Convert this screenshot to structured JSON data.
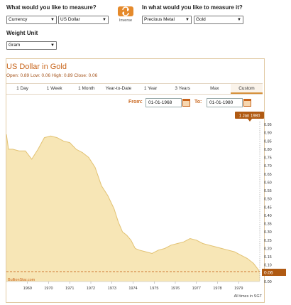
{
  "controls": {
    "measure_label": "What would you like to measure?",
    "measure_in_label": "In what would you like to measure it?",
    "inverse_label": "Inverse",
    "weight_label": "Weight Unit",
    "measure_type": "Currency",
    "measure_value": "US Dollar",
    "in_type": "Precious Metal",
    "in_value": "Gold",
    "weight_value": "Gram"
  },
  "panel": {
    "title": "US Dollar in Gold",
    "stats": "Open: 0.89 Low: 0.06 High: 0.89 Close: 0.06",
    "tabs": [
      "1 Day",
      "1 Week",
      "1 Month",
      "Year-to-Date",
      "1 Year",
      "3 Years",
      "Max",
      "Custom"
    ],
    "active_tab": "Custom",
    "from_label": "From:",
    "from_value": "01-01-1968",
    "to_label": "To:",
    "to_value": "01-01-1980",
    "watermark": "BullionStar.com",
    "timezone_note": "All times in SGT",
    "tooltip_date": "1 Jan 1980",
    "current_value_label": "0.06"
  },
  "colors": {
    "accent": "#c8641a",
    "area_fill": "#f7e6b6",
    "line": "#e2c273",
    "badge": "#b05a12"
  },
  "chart_data": {
    "type": "area",
    "x_tick_labels": [
      "1969",
      "1970",
      "1971",
      "1972",
      "1973",
      "1974",
      "1975",
      "1976",
      "1977",
      "1978",
      "1979"
    ],
    "y_tick_labels": [
      "0.95",
      "0.90",
      "0.85",
      "0.80",
      "0.75",
      "0.70",
      "0.65",
      "0.60",
      "0.55",
      "0.50",
      "0.45",
      "0.40",
      "0.35",
      "0.30",
      "0.25",
      "0.20",
      "0.15",
      "0.10",
      "0.05",
      "0.00"
    ],
    "ylim": [
      0,
      0.95
    ],
    "xlim": [
      1968.0,
      1980.0
    ],
    "x": [
      1968.0,
      1968.1,
      1968.3,
      1968.6,
      1968.9,
      1969.2,
      1969.5,
      1969.8,
      1970.1,
      1970.4,
      1970.7,
      1971.0,
      1971.3,
      1971.6,
      1971.9,
      1972.2,
      1972.5,
      1972.8,
      1973.1,
      1973.3,
      1973.5,
      1973.7,
      1973.9,
      1974.1,
      1974.3,
      1974.6,
      1974.9,
      1975.2,
      1975.5,
      1975.8,
      1976.1,
      1976.4,
      1976.7,
      1977.0,
      1977.3,
      1977.6,
      1977.9,
      1978.2,
      1978.5,
      1978.8,
      1979.1,
      1979.4,
      1979.7,
      1980.0
    ],
    "values": [
      0.89,
      0.8,
      0.8,
      0.79,
      0.79,
      0.74,
      0.8,
      0.87,
      0.88,
      0.87,
      0.85,
      0.84,
      0.8,
      0.78,
      0.75,
      0.69,
      0.58,
      0.52,
      0.44,
      0.36,
      0.3,
      0.28,
      0.25,
      0.2,
      0.19,
      0.18,
      0.17,
      0.19,
      0.2,
      0.22,
      0.23,
      0.24,
      0.26,
      0.25,
      0.23,
      0.22,
      0.21,
      0.2,
      0.19,
      0.18,
      0.16,
      0.14,
      0.11,
      0.06
    ]
  }
}
